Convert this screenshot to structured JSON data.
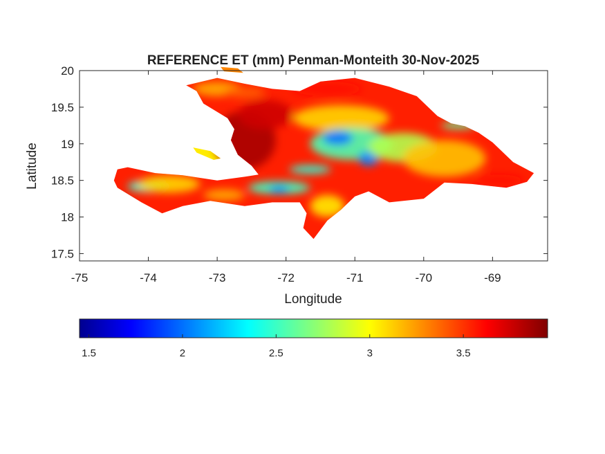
{
  "map": {
    "title": "REFERENCE ET (mm) Penman-Monteith 30-Nov-2025",
    "xlabel": "Longitude",
    "ylabel": "Latitude",
    "xlim": [
      -75,
      -68.2
    ],
    "ylim": [
      17.4,
      20
    ],
    "xticks": [
      {
        "value": -75,
        "label": "-75"
      },
      {
        "value": -74,
        "label": "-74"
      },
      {
        "value": -73,
        "label": "-73"
      },
      {
        "value": -72,
        "label": "-72"
      },
      {
        "value": -71,
        "label": "-71"
      },
      {
        "value": -70,
        "label": "-70"
      },
      {
        "value": -69,
        "label": "-69"
      }
    ],
    "yticks": [
      {
        "value": 17.5,
        "label": "17.5"
      },
      {
        "value": 18,
        "label": "18"
      },
      {
        "value": 18.5,
        "label": "18.5"
      },
      {
        "value": 19,
        "label": "19"
      },
      {
        "value": 19.5,
        "label": "19.5"
      },
      {
        "value": 20,
        "label": "20"
      }
    ],
    "colormap": "jet",
    "colormap_stops": [
      "#00008f",
      "#0000ff",
      "#00ffff",
      "#ffff00",
      "#ff0000",
      "#800000"
    ]
  },
  "colorbar": {
    "range": [
      1.45,
      3.95
    ],
    "ticks": [
      {
        "value": 1.5,
        "label": "1.5"
      },
      {
        "value": 2,
        "label": "2"
      },
      {
        "value": 2.5,
        "label": "2.5"
      },
      {
        "value": 3,
        "label": "3"
      },
      {
        "value": 3.5,
        "label": "3.5"
      }
    ]
  },
  "regions": [
    {
      "name": "hispaniola",
      "value": 3.55,
      "points": [
        [
          -74.45,
          18.65
        ],
        [
          -74.3,
          18.68
        ],
        [
          -73.9,
          18.6
        ],
        [
          -73.5,
          18.57
        ],
        [
          -73.0,
          18.5
        ],
        [
          -72.6,
          18.55
        ],
        [
          -72.4,
          18.58
        ],
        [
          -72.5,
          18.7
        ],
        [
          -72.7,
          18.85
        ],
        [
          -72.8,
          19.05
        ],
        [
          -72.75,
          19.2
        ],
        [
          -72.85,
          19.35
        ],
        [
          -73.2,
          19.55
        ],
        [
          -73.3,
          19.72
        ],
        [
          -73.45,
          19.8
        ],
        [
          -73.0,
          19.9
        ],
        [
          -72.6,
          19.82
        ],
        [
          -72.2,
          19.75
        ],
        [
          -71.8,
          19.72
        ],
        [
          -71.5,
          19.85
        ],
        [
          -71.0,
          19.9
        ],
        [
          -70.5,
          19.78
        ],
        [
          -70.1,
          19.65
        ],
        [
          -69.8,
          19.38
        ],
        [
          -69.6,
          19.28
        ],
        [
          -69.4,
          19.24
        ],
        [
          -69.2,
          19.15
        ],
        [
          -69.0,
          19.02
        ],
        [
          -68.7,
          18.75
        ],
        [
          -68.4,
          18.6
        ],
        [
          -68.5,
          18.48
        ],
        [
          -68.8,
          18.4
        ],
        [
          -69.0,
          18.42
        ],
        [
          -69.3,
          18.45
        ],
        [
          -69.7,
          18.47
        ],
        [
          -70.0,
          18.25
        ],
        [
          -70.5,
          18.2
        ],
        [
          -70.8,
          18.35
        ],
        [
          -71.0,
          18.28
        ],
        [
          -71.2,
          18.1
        ],
        [
          -71.4,
          17.95
        ],
        [
          -71.6,
          17.7
        ],
        [
          -71.75,
          17.85
        ],
        [
          -71.7,
          18.05
        ],
        [
          -71.8,
          18.2
        ],
        [
          -72.2,
          18.2
        ],
        [
          -72.6,
          18.15
        ],
        [
          -73.1,
          18.22
        ],
        [
          -73.5,
          18.15
        ],
        [
          -73.8,
          18.05
        ],
        [
          -74.1,
          18.2
        ],
        [
          -74.45,
          18.4
        ],
        [
          -74.5,
          18.5
        ]
      ]
    },
    {
      "name": "gonave-island",
      "value": 3.05,
      "points": [
        [
          -73.35,
          18.95
        ],
        [
          -73.1,
          18.9
        ],
        [
          -72.95,
          18.8
        ],
        [
          -73.05,
          18.78
        ],
        [
          -73.3,
          18.88
        ]
      ]
    },
    {
      "name": "tortuga-island",
      "value": 3.3,
      "points": [
        [
          -72.95,
          20.05
        ],
        [
          -72.7,
          20.03
        ],
        [
          -72.62,
          19.97
        ],
        [
          -72.9,
          19.99
        ]
      ]
    }
  ],
  "field_patches": [
    {
      "name": "northwest-peninsula-yellow",
      "value": 3.2,
      "center": [
        -73.0,
        19.75
      ],
      "radius": [
        0.35,
        0.1
      ]
    },
    {
      "name": "northwest-coast-orange",
      "value": 3.4,
      "center": [
        -72.6,
        19.7
      ],
      "radius": [
        0.3,
        0.08
      ]
    },
    {
      "name": "central-haiti-dark",
      "value": 3.85,
      "center": [
        -72.6,
        19.05
      ],
      "radius": [
        0.45,
        0.4
      ]
    },
    {
      "name": "artibonite-dark",
      "value": 3.75,
      "center": [
        -72.3,
        19.4
      ],
      "radius": [
        0.4,
        0.2
      ]
    },
    {
      "name": "north-coast-red",
      "value": 3.6,
      "center": [
        -71.4,
        19.75
      ],
      "radius": [
        0.5,
        0.1
      ]
    },
    {
      "name": "cibao-yellow",
      "value": 3.1,
      "center": [
        -71.2,
        19.35
      ],
      "radius": [
        0.7,
        0.18
      ]
    },
    {
      "name": "cordillera-cyan",
      "value": 2.55,
      "center": [
        -71.05,
        19.0
      ],
      "radius": [
        0.6,
        0.22
      ]
    },
    {
      "name": "cordillera-blue-1",
      "value": 2.0,
      "center": [
        -71.25,
        19.08
      ],
      "radius": [
        0.22,
        0.1
      ]
    },
    {
      "name": "cordillera-blue-2",
      "value": 2.05,
      "center": [
        -70.8,
        18.8
      ],
      "radius": [
        0.15,
        0.1
      ]
    },
    {
      "name": "central-east-green",
      "value": 2.8,
      "center": [
        -70.3,
        18.95
      ],
      "radius": [
        0.5,
        0.2
      ]
    },
    {
      "name": "eastern-yellow",
      "value": 3.15,
      "center": [
        -69.7,
        18.8
      ],
      "radius": [
        0.6,
        0.25
      ]
    },
    {
      "name": "samana-cyan",
      "value": 2.6,
      "center": [
        -69.5,
        19.25
      ],
      "radius": [
        0.25,
        0.05
      ]
    },
    {
      "name": "southeast-coast-red",
      "value": 3.6,
      "center": [
        -68.9,
        18.5
      ],
      "radius": [
        0.35,
        0.08
      ]
    },
    {
      "name": "south-range-cyan",
      "value": 2.5,
      "center": [
        -72.1,
        18.4
      ],
      "radius": [
        0.45,
        0.09
      ]
    },
    {
      "name": "south-range-blue",
      "value": 2.05,
      "center": [
        -72.1,
        18.38
      ],
      "radius": [
        0.15,
        0.05
      ]
    },
    {
      "name": "sierra-neiba-cyan",
      "value": 2.45,
      "center": [
        -71.65,
        18.65
      ],
      "radius": [
        0.3,
        0.06
      ]
    },
    {
      "name": "baoruco-yellow",
      "value": 3.05,
      "center": [
        -71.4,
        18.15
      ],
      "radius": [
        0.25,
        0.15
      ]
    },
    {
      "name": "southwest-cyan",
      "value": 2.45,
      "center": [
        -74.0,
        18.42
      ],
      "radius": [
        0.3,
        0.08
      ]
    },
    {
      "name": "southwest-yellow",
      "value": 3.1,
      "center": [
        -73.7,
        18.45
      ],
      "radius": [
        0.45,
        0.12
      ]
    },
    {
      "name": "southern-peninsula-yellow",
      "value": 3.2,
      "center": [
        -72.9,
        18.3
      ],
      "radius": [
        0.3,
        0.08
      ]
    }
  ]
}
